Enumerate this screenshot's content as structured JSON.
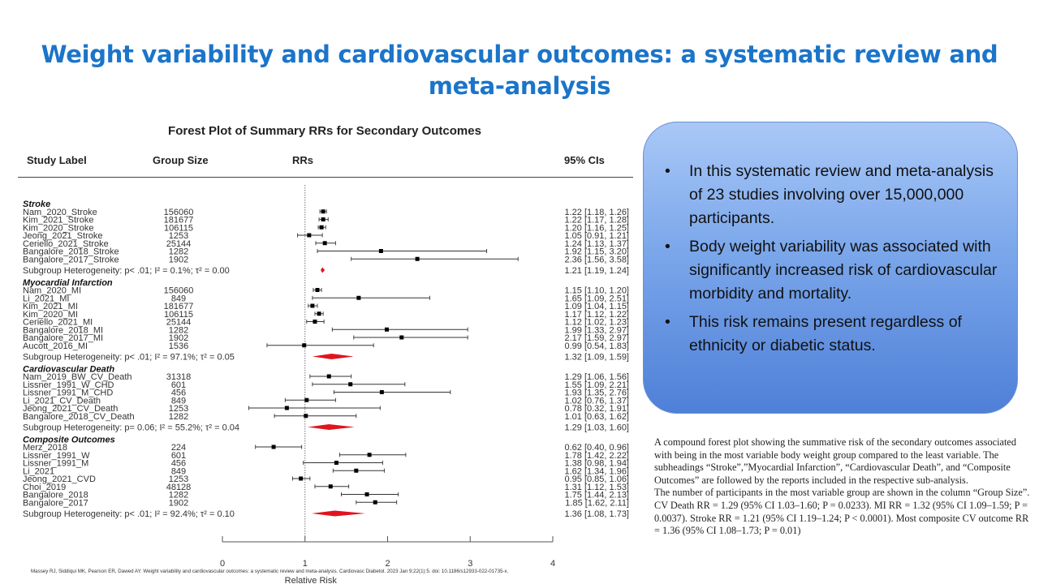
{
  "slide_title": "Weight variability and cardiovascular outcomes: a systematic review and meta-analysis",
  "chart_data": {
    "type": "forest",
    "title": "Forest Plot of Summary RRs for Secondary Outcomes",
    "columns": {
      "study": "Study Label",
      "n": "Group Size",
      "rr": "RRs",
      "ci": "95% CIs"
    },
    "xlabel": "Relative Risk",
    "xlim": [
      0,
      4
    ],
    "xticks": [
      "0",
      "1",
      "2",
      "3",
      "4"
    ],
    "reference_line": 1,
    "groups": [
      {
        "name": "Stroke",
        "studies": [
          {
            "label": "Nam_2020_Stroke",
            "n": "156060",
            "rr": 1.22,
            "lo": 1.18,
            "hi": 1.26,
            "ci": "1.22 [1.18, 1.26]"
          },
          {
            "label": "Kim_2021_Stroke",
            "n": "181677",
            "rr": 1.22,
            "lo": 1.17,
            "hi": 1.28,
            "ci": "1.22 [1.17, 1.28]"
          },
          {
            "label": "Kim_2020_Stroke",
            "n": "106115",
            "rr": 1.2,
            "lo": 1.16,
            "hi": 1.25,
            "ci": "1.20 [1.16, 1.25]"
          },
          {
            "label": "Jeong_2021_Stroke",
            "n": "1253",
            "rr": 1.05,
            "lo": 0.91,
            "hi": 1.21,
            "ci": "1.05 [0.91, 1.21]"
          },
          {
            "label": "Ceriello_2021_Stroke",
            "n": "25144",
            "rr": 1.24,
            "lo": 1.13,
            "hi": 1.37,
            "ci": "1.24 [1.13, 1.37]"
          },
          {
            "label": "Bangalore_2018_Stroke",
            "n": "1282",
            "rr": 1.92,
            "lo": 1.15,
            "hi": 3.2,
            "ci": "1.92 [1.15, 3.20]"
          },
          {
            "label": "Bangalore_2017_Stroke",
            "n": "1902",
            "rr": 2.36,
            "lo": 1.56,
            "hi": 3.58,
            "ci": "2.36 [1.56, 3.58]"
          }
        ],
        "heterogeneity": "Subgroup Heterogeneity: p< .01; I² = 0.1%; τ² = 0.00",
        "summary": {
          "rr": 1.21,
          "lo": 1.19,
          "hi": 1.24,
          "ci": "1.21 [1.19, 1.24]"
        }
      },
      {
        "name": "Myocardial Infarction",
        "studies": [
          {
            "label": "Nam_2020_MI",
            "n": "156060",
            "rr": 1.15,
            "lo": 1.1,
            "hi": 1.2,
            "ci": "1.15 [1.10, 1.20]"
          },
          {
            "label": "Li_2021_MI",
            "n": "849",
            "rr": 1.65,
            "lo": 1.09,
            "hi": 2.51,
            "ci": "1.65 [1.09, 2.51]"
          },
          {
            "label": "Kim_2021_MI",
            "n": "181677",
            "rr": 1.09,
            "lo": 1.04,
            "hi": 1.15,
            "ci": "1.09 [1.04, 1.15]"
          },
          {
            "label": "Kim_2020_MI",
            "n": "106115",
            "rr": 1.17,
            "lo": 1.12,
            "hi": 1.22,
            "ci": "1.17 [1.12, 1.22]"
          },
          {
            "label": "Ceriello_2021_MI",
            "n": "25144",
            "rr": 1.12,
            "lo": 1.02,
            "hi": 1.23,
            "ci": "1.12 [1.02, 1.23]"
          },
          {
            "label": "Bangalore_2018_MI",
            "n": "1282",
            "rr": 1.99,
            "lo": 1.33,
            "hi": 2.97,
            "ci": "1.99 [1.33, 2.97]"
          },
          {
            "label": "Bangalore_2017_MI",
            "n": "1902",
            "rr": 2.17,
            "lo": 1.59,
            "hi": 2.97,
            "ci": "2.17 [1.59, 2.97]"
          },
          {
            "label": "Aucott_2016_MI",
            "n": "1536",
            "rr": 0.99,
            "lo": 0.54,
            "hi": 1.83,
            "ci": "0.99 [0.54, 1.83]"
          }
        ],
        "heterogeneity": "Subgroup Heterogeneity: p< .01; I² = 97.1%; τ² = 0.05",
        "summary": {
          "rr": 1.32,
          "lo": 1.09,
          "hi": 1.59,
          "ci": "1.32 [1.09, 1.59]"
        }
      },
      {
        "name": "Cardiovascular Death",
        "studies": [
          {
            "label": "Nam_2019_BW_CV_Death",
            "n": "31318",
            "rr": 1.29,
            "lo": 1.06,
            "hi": 1.56,
            "ci": "1.29 [1.06, 1.56]"
          },
          {
            "label": "Lissner_1991_W_CHD",
            "n": "601",
            "rr": 1.55,
            "lo": 1.09,
            "hi": 2.21,
            "ci": "1.55 [1.09, 2.21]"
          },
          {
            "label": "Lissner_1991_M_CHD",
            "n": "456",
            "rr": 1.93,
            "lo": 1.35,
            "hi": 2.76,
            "ci": "1.93 [1.35, 2.76]"
          },
          {
            "label": "Li_2021_CV_Death",
            "n": "849",
            "rr": 1.02,
            "lo": 0.76,
            "hi": 1.37,
            "ci": "1.02 [0.76, 1.37]"
          },
          {
            "label": "Jeong_2021_CV_Death",
            "n": "1253",
            "rr": 0.78,
            "lo": 0.32,
            "hi": 1.91,
            "ci": "0.78 [0.32, 1.91]"
          },
          {
            "label": "Bangalore_2018_CV_Death",
            "n": "1282",
            "rr": 1.01,
            "lo": 0.63,
            "hi": 1.62,
            "ci": "1.01 [0.63, 1.62]"
          }
        ],
        "heterogeneity": "Subgroup Heterogeneity: p= 0.06; I² = 55.2%; τ² = 0.04",
        "summary": {
          "rr": 1.29,
          "lo": 1.03,
          "hi": 1.6,
          "ci": "1.29 [1.03, 1.60]"
        }
      },
      {
        "name": "Composite Outcomes",
        "studies": [
          {
            "label": "Merz_2018",
            "n": "224",
            "rr": 0.62,
            "lo": 0.4,
            "hi": 0.96,
            "ci": "0.62 [0.40, 0.96]"
          },
          {
            "label": "Lissner_1991_W",
            "n": "601",
            "rr": 1.78,
            "lo": 1.42,
            "hi": 2.22,
            "ci": "1.78 [1.42, 2.22]"
          },
          {
            "label": "Lissner_1991_M",
            "n": "456",
            "rr": 1.38,
            "lo": 0.98,
            "hi": 1.94,
            "ci": "1.38 [0.98, 1.94]"
          },
          {
            "label": "Li_2021",
            "n": "849",
            "rr": 1.62,
            "lo": 1.34,
            "hi": 1.96,
            "ci": "1.62 [1.34, 1.96]"
          },
          {
            "label": "Jeong_2021_CVD",
            "n": "1253",
            "rr": 0.95,
            "lo": 0.85,
            "hi": 1.06,
            "ci": "0.95 [0.85, 1.06]"
          },
          {
            "label": "Choi_2019",
            "n": "48128",
            "rr": 1.31,
            "lo": 1.12,
            "hi": 1.53,
            "ci": "1.31 [1.12, 1.53]"
          },
          {
            "label": "Bangalore_2018",
            "n": "1282",
            "rr": 1.75,
            "lo": 1.44,
            "hi": 2.13,
            "ci": "1.75 [1.44, 2.13]"
          },
          {
            "label": "Bangalore_2017",
            "n": "1902",
            "rr": 1.85,
            "lo": 1.62,
            "hi": 2.11,
            "ci": "1.85 [1.62, 2.11]"
          }
        ],
        "heterogeneity": "Subgroup Heterogeneity: p< .01; I² = 92.4%; τ² = 0.10",
        "summary": {
          "rr": 1.36,
          "lo": 1.08,
          "hi": 1.73,
          "ci": "1.36 [1.08, 1.73]"
        }
      }
    ]
  },
  "summary_panel": {
    "bullets": [
      "In this systematic review and meta-analysis of 23 studies involving over 15,000,000 participants.",
      "Body weight variability was associated with significantly increased risk of cardiovascular morbidity and mortality.",
      "This risk remains present regardless of ethnicity or diabetic status."
    ]
  },
  "caption": [
    "A compound forest plot showing the summative risk of the secondary outcomes associated with being in the most variable body weight group compared to the least variable. The subheadings “Stroke”,”Myocardial Infarction”, “Cardiovascular Death”, and “Composite Outcomes” are followed by the reports included in the respective sub-analysis.",
    "The number of participants in the most variable group are shown in the column “Group Size”.",
    "CV Death RR = 1.29 (95% CI 1.03–1.60; P = 0.0233). MI RR = 1.32 (95% CI 1.09–1.59; P = 0.0037). Stroke RR = 1.21 (95% CI 1.19–1.24; P < 0.0001). Most composite CV outcome RR = 1.36 (95% CI 1.08–1.73; P = 0.01)"
  ],
  "citation": "Massey RJ, Siddiqui MK, Pearson ER, Dawed AY. Weight variability and cardiovascular outcomes: a systematic review and meta-analysis. Cardiovasc Diabetol. 2023 Jan 9;22(1):5. doi: 10.1186/s12933-022-01735-x.",
  "colors": {
    "title": "#1b75c9",
    "diamond": "#e0141e",
    "panel": "#7aa6ea"
  }
}
